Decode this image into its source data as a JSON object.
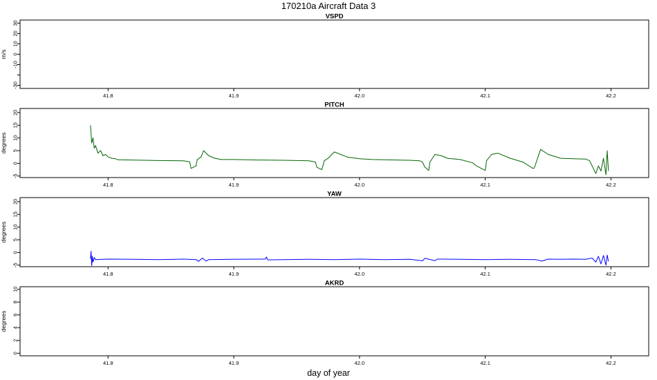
{
  "figure": {
    "title": "170210a   Aircraft Data 3",
    "xlabel": "day of year"
  },
  "chart_data": [
    {
      "type": "line",
      "title": "VSPD",
      "ylabel": "m/s",
      "xlim": [
        41.73,
        42.23
      ],
      "ylim": [
        -33,
        33
      ],
      "xticks": [
        "41.8",
        "41.9",
        "42.0",
        "42.1",
        "42.2"
      ],
      "yticks": [
        "-30",
        "",
        "-10",
        "0",
        "10",
        "20",
        "30"
      ],
      "ytick_values": [
        -30,
        -20,
        -10,
        0,
        10,
        20,
        30
      ],
      "grid": false,
      "series": []
    },
    {
      "type": "line",
      "title": "PITCH",
      "ylabel": "degrees",
      "xlim": [
        41.73,
        42.23
      ],
      "ylim": [
        -5.6,
        21.6
      ],
      "xticks": [
        "41.8",
        "41.9",
        "42.0",
        "42.1",
        "42.2"
      ],
      "yticks": [
        "-5",
        "0",
        "5",
        "10",
        "15",
        "20"
      ],
      "ytick_values": [
        -5,
        0,
        5,
        10,
        15,
        20
      ],
      "grid": false,
      "color": "#006400",
      "series": [
        {
          "x": [
            41.786,
            41.787,
            41.788,
            41.789,
            41.79,
            41.792,
            41.794,
            41.796,
            41.798,
            41.8,
            41.803,
            41.806,
            41.808,
            41.82,
            41.84,
            41.86,
            41.865,
            41.866,
            41.87,
            41.871,
            41.874,
            41.876,
            41.88,
            41.885,
            41.89,
            41.9,
            41.92,
            41.94,
            41.96,
            41.965,
            41.966,
            41.97,
            41.972,
            41.975,
            41.98,
            41.99,
            42.0,
            42.01,
            42.02,
            42.03,
            42.04,
            42.048,
            42.05,
            42.052,
            42.055,
            42.056,
            42.06,
            42.065,
            42.07,
            42.08,
            42.09,
            42.093,
            42.1,
            42.101,
            42.105,
            42.11,
            42.12,
            42.13,
            42.138,
            42.139,
            42.144,
            42.15,
            42.16,
            42.17,
            42.18,
            42.183,
            42.186,
            42.188,
            42.19,
            42.192,
            42.194,
            42.196,
            42.197,
            42.198
          ],
          "y": [
            15.0,
            8.0,
            10.0,
            6.0,
            7.0,
            4.0,
            5.0,
            3.0,
            3.5,
            2.5,
            2.0,
            1.8,
            1.4,
            1.3,
            1.1,
            1.0,
            0.6,
            -2.0,
            -1.0,
            1.5,
            2.5,
            5.0,
            3.0,
            2.0,
            1.5,
            1.5,
            1.3,
            1.2,
            1.0,
            0.5,
            -1.5,
            -2.5,
            1.0,
            2.0,
            4.5,
            2.5,
            1.8,
            1.5,
            1.4,
            1.3,
            1.2,
            1.0,
            0.5,
            -1.5,
            -2.8,
            0.5,
            3.5,
            3.0,
            2.0,
            1.5,
            0.2,
            -1.0,
            -2.8,
            1.0,
            3.5,
            4.0,
            2.0,
            0.5,
            -2.0,
            -1.8,
            5.5,
            3.5,
            2.0,
            1.8,
            1.7,
            1.0,
            -2.0,
            -4.0,
            -1.0,
            -3.0,
            2.0,
            -4.5,
            5.0,
            -3.0
          ]
        }
      ]
    },
    {
      "type": "line",
      "title": "YAW",
      "ylabel": "degrees",
      "xlim": [
        41.73,
        42.23
      ],
      "ylim": [
        -5.6,
        21.6
      ],
      "xticks": [
        "41.8",
        "41.9",
        "42.0",
        "42.1",
        "42.2"
      ],
      "yticks": [
        "-5",
        "0",
        "5",
        "10",
        "15",
        "20"
      ],
      "ytick_values": [
        -5,
        0,
        5,
        10,
        15,
        20
      ],
      "grid": false,
      "color": "#0000ff",
      "series": [
        {
          "x": [
            41.786,
            41.7865,
            41.787,
            41.7875,
            41.788,
            41.789,
            41.79,
            41.8,
            41.82,
            41.84,
            41.86,
            41.87,
            41.872,
            41.875,
            41.878,
            41.88,
            41.9,
            41.925,
            41.926,
            41.927,
            41.94,
            41.96,
            41.98,
            42.0,
            42.02,
            42.04,
            42.05,
            42.052,
            42.06,
            42.062,
            42.08,
            42.1,
            42.12,
            42.14,
            42.145,
            42.15,
            42.16,
            42.17,
            42.18,
            42.185,
            42.188,
            42.19,
            42.192,
            42.194,
            42.196,
            42.197,
            42.198
          ],
          "y": [
            -2.5,
            0.5,
            -5.2,
            -1.5,
            -3.8,
            -2.0,
            -2.8,
            -2.6,
            -2.7,
            -2.8,
            -2.6,
            -2.8,
            -3.5,
            -2.2,
            -3.4,
            -2.8,
            -2.7,
            -2.6,
            -1.8,
            -2.9,
            -2.8,
            -2.7,
            -2.8,
            -2.6,
            -2.8,
            -2.7,
            -3.3,
            -2.3,
            -3.2,
            -2.6,
            -2.7,
            -2.8,
            -2.7,
            -2.8,
            -3.4,
            -2.6,
            -2.7,
            -2.6,
            -2.7,
            -2.2,
            -3.8,
            -1.5,
            -4.5,
            -1.2,
            -5.0,
            -1.0,
            -3.5
          ]
        }
      ]
    },
    {
      "type": "line",
      "title": "AKRD",
      "ylabel": "degrees",
      "xlim": [
        41.73,
        42.23
      ],
      "ylim": [
        -0.4,
        10.4
      ],
      "xticks": [
        "41.8",
        "41.9",
        "42.0",
        "42.1",
        "42.2"
      ],
      "yticks": [
        "0",
        "2",
        "4",
        "6",
        "8",
        "10"
      ],
      "ytick_values": [
        0,
        2,
        4,
        6,
        8,
        10
      ],
      "grid": false,
      "series": []
    }
  ]
}
